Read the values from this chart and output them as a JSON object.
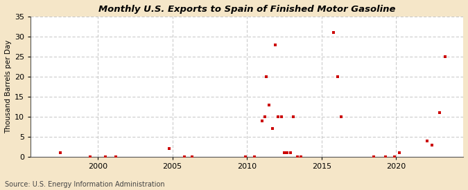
{
  "title": "Monthly U.S. Exports to Spain of Finished Motor Gasoline",
  "ylabel": "Thousand Barrels per Day",
  "source": "Source: U.S. Energy Information Administration",
  "fig_background_color": "#f5e6c8",
  "plot_background_color": "#ffffff",
  "point_color": "#cc0000",
  "grid_color": "#bbbbbb",
  "xlim": [
    1995.5,
    2024.5
  ],
  "ylim": [
    0,
    35
  ],
  "yticks": [
    0,
    5,
    10,
    15,
    20,
    25,
    30,
    35
  ],
  "xticks": [
    2000,
    2005,
    2010,
    2015,
    2020
  ],
  "data_points": [
    [
      1997.5,
      1
    ],
    [
      1999.5,
      0
    ],
    [
      2000.5,
      0
    ],
    [
      2001.2,
      0
    ],
    [
      2004.8,
      2
    ],
    [
      2005.8,
      0
    ],
    [
      2006.3,
      0
    ],
    [
      2009.9,
      0
    ],
    [
      2010.5,
      0
    ],
    [
      2011.0,
      9
    ],
    [
      2011.2,
      10
    ],
    [
      2011.3,
      20
    ],
    [
      2011.5,
      13
    ],
    [
      2011.7,
      7
    ],
    [
      2011.9,
      28
    ],
    [
      2012.1,
      10
    ],
    [
      2012.3,
      10
    ],
    [
      2012.5,
      1
    ],
    [
      2012.7,
      1
    ],
    [
      2012.9,
      1
    ],
    [
      2013.1,
      10
    ],
    [
      2013.4,
      0
    ],
    [
      2013.6,
      0
    ],
    [
      2015.8,
      31
    ],
    [
      2016.1,
      20
    ],
    [
      2016.3,
      10
    ],
    [
      2018.5,
      0
    ],
    [
      2019.3,
      0
    ],
    [
      2019.9,
      0
    ],
    [
      2020.2,
      1
    ],
    [
      2022.1,
      4
    ],
    [
      2022.4,
      3
    ],
    [
      2022.9,
      11
    ],
    [
      2023.3,
      25
    ]
  ]
}
